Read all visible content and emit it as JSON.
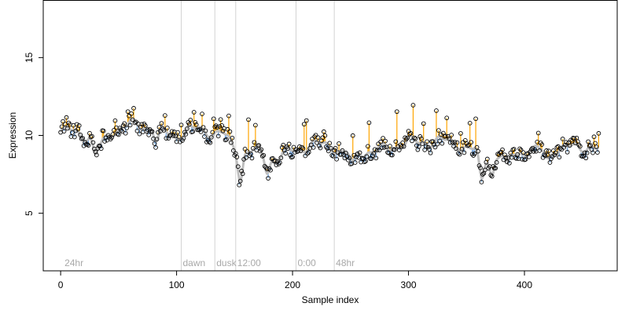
{
  "chart_data": {
    "type": "scatter",
    "title": "",
    "xlabel": "Sample index",
    "ylabel": "Expression",
    "xlim": [
      -15,
      480
    ],
    "ylim": [
      1.3,
      18.7
    ],
    "x_ticks": [
      0,
      100,
      200,
      300,
      400
    ],
    "y_ticks": [
      5,
      10,
      15
    ],
    "grid": false,
    "legend": "none",
    "n_points": 465,
    "baseline_anchors": [
      [
        0,
        10.2
      ],
      [
        10,
        10.3
      ],
      [
        25,
        9.9
      ],
      [
        35,
        9.4
      ],
      [
        45,
        10.3
      ],
      [
        60,
        10.7
      ],
      [
        75,
        10.6
      ],
      [
        90,
        10.2
      ],
      [
        100,
        10.0
      ],
      [
        110,
        10.3
      ],
      [
        120,
        10.4
      ],
      [
        130,
        10.2
      ],
      [
        140,
        10.1
      ],
      [
        150,
        9.2
      ],
      [
        160,
        9.0
      ],
      [
        175,
        8.9
      ],
      [
        185,
        8.4
      ],
      [
        195,
        8.9
      ],
      [
        205,
        9.1
      ],
      [
        215,
        9.4
      ],
      [
        225,
        9.4
      ],
      [
        235,
        9.3
      ],
      [
        245,
        8.8
      ],
      [
        255,
        8.9
      ],
      [
        270,
        9.0
      ],
      [
        285,
        9.2
      ],
      [
        300,
        9.6
      ],
      [
        310,
        9.5
      ],
      [
        325,
        9.7
      ],
      [
        340,
        9.5
      ],
      [
        355,
        9.1
      ],
      [
        365,
        8.8
      ],
      [
        375,
        8.7
      ],
      [
        385,
        8.8
      ],
      [
        395,
        8.9
      ],
      [
        410,
        9.0
      ],
      [
        425,
        9.1
      ],
      [
        440,
        9.2
      ],
      [
        455,
        9.3
      ],
      [
        465,
        9.1
      ]
    ],
    "dips": [
      [
        30,
        1.0
      ],
      [
        83,
        0.8
      ],
      [
        155,
        1.8
      ],
      [
        178,
        1.0
      ],
      [
        252,
        0.8
      ],
      [
        363,
        1.8
      ],
      [
        372,
        1.2
      ],
      [
        385,
        0.9
      ],
      [
        420,
        0.6
      ]
    ],
    "spikes": [
      [
        5,
        0.6
      ],
      [
        16,
        0.5
      ],
      [
        36,
        0.6
      ],
      [
        47,
        0.9
      ],
      [
        58,
        0.8
      ],
      [
        63,
        0.7
      ],
      [
        90,
        0.9
      ],
      [
        104,
        0.9
      ],
      [
        115,
        1.0
      ],
      [
        122,
        0.9
      ],
      [
        132,
        1.0
      ],
      [
        138,
        0.8
      ],
      [
        145,
        1.3
      ],
      [
        162,
        2.1
      ],
      [
        168,
        1.4
      ],
      [
        210,
        1.8
      ],
      [
        212,
        2.0
      ],
      [
        227,
        0.7
      ],
      [
        240,
        0.5
      ],
      [
        252,
        1.6
      ],
      [
        266,
        1.9
      ],
      [
        290,
        2.3
      ],
      [
        304,
        2.1
      ],
      [
        313,
        1.2
      ],
      [
        324,
        1.8
      ],
      [
        333,
        1.4
      ],
      [
        345,
        1.1
      ],
      [
        353,
        1.6
      ],
      [
        358,
        1.9
      ],
      [
        412,
        0.9
      ],
      [
        460,
        0.7
      ],
      [
        464,
        0.9
      ]
    ],
    "annotations": [
      {
        "x": 104,
        "label": "dawn"
      },
      {
        "x": 133,
        "label": "dusk"
      },
      {
        "x": 151,
        "label": "12:00"
      },
      {
        "x": 203,
        "label": "0:00"
      },
      {
        "x": 236,
        "label": "48hr"
      }
    ],
    "corner_label": {
      "x": 2,
      "label": "24hr"
    },
    "colors": {
      "above": "#ffa500",
      "below": "#6ca0dc",
      "smooth": "#bebebe",
      "point_stroke": "#000000",
      "annotation_line": "#d3d3d3",
      "annotation_text": "#a9a9a9"
    }
  }
}
